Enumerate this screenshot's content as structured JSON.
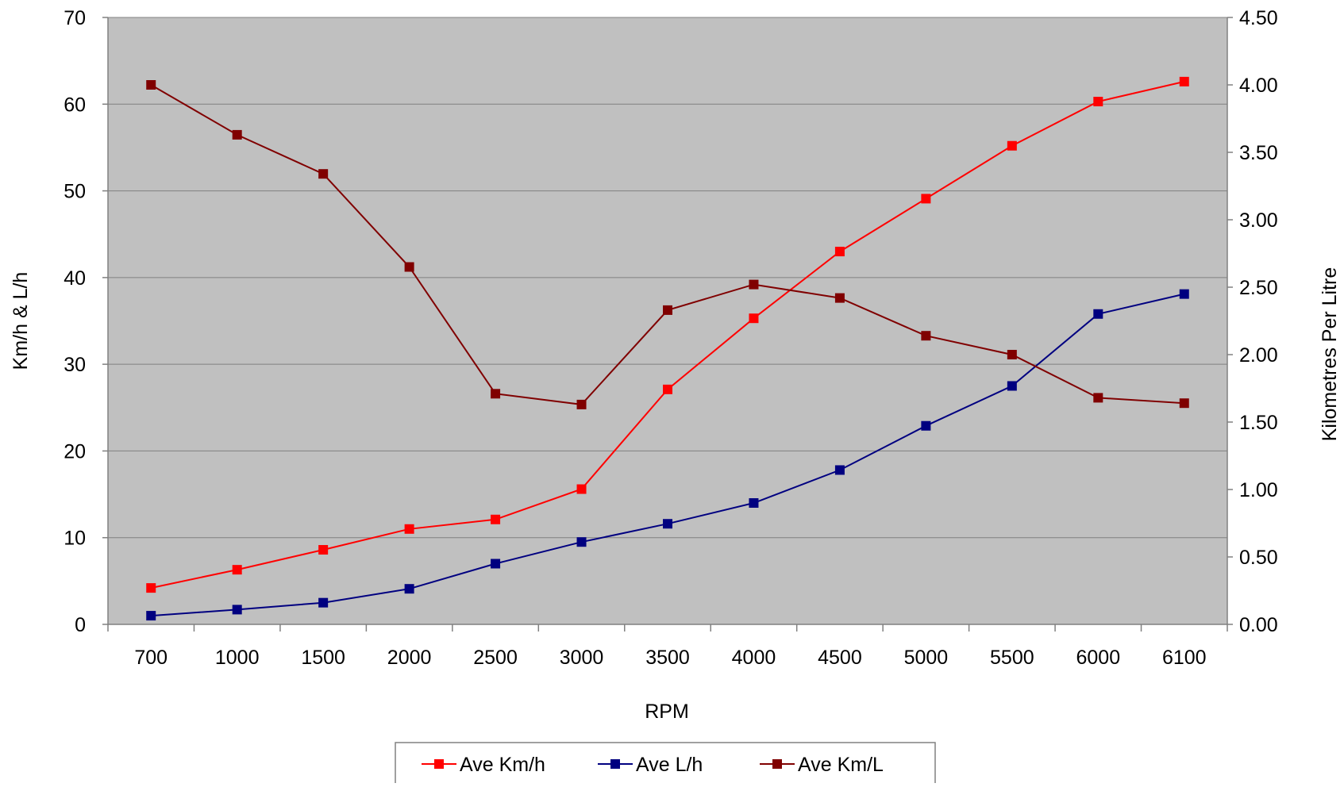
{
  "chart_data": {
    "type": "line",
    "title": "",
    "xlabel": "RPM",
    "ylabel": "Km/h & L/h",
    "y2label": "Kilometres Per Litre",
    "categories": [
      "700",
      "1000",
      "1500",
      "2000",
      "2500",
      "3000",
      "3500",
      "4000",
      "4500",
      "5000",
      "5500",
      "6000",
      "6100"
    ],
    "ylim": [
      0,
      70
    ],
    "yticks": [
      "0",
      "10",
      "20",
      "30",
      "40",
      "50",
      "60",
      "70"
    ],
    "y2lim": [
      0,
      4.5
    ],
    "y2ticks": [
      "0.00",
      "0.50",
      "1.00",
      "1.50",
      "2.00",
      "2.50",
      "3.00",
      "3.50",
      "4.00",
      "4.50"
    ],
    "grid": true,
    "plot_background": "#c0c0c0",
    "legend_position": "bottom",
    "series": [
      {
        "name": "Ave Km/h",
        "axis": "left",
        "color": "#ff0000",
        "values": [
          4.2,
          6.3,
          8.6,
          11.0,
          12.1,
          15.6,
          27.1,
          35.3,
          43.0,
          49.1,
          55.2,
          60.3,
          62.6
        ]
      },
      {
        "name": "Ave L/h",
        "axis": "left",
        "color": "#000080",
        "values": [
          1.0,
          1.7,
          2.5,
          4.1,
          7.0,
          9.5,
          11.6,
          14.0,
          17.8,
          22.9,
          27.5,
          35.8,
          38.1
        ]
      },
      {
        "name": "Ave Km/L",
        "axis": "right",
        "color": "#800000",
        "values": [
          4.0,
          3.63,
          3.34,
          2.65,
          1.71,
          1.63,
          2.33,
          2.52,
          2.42,
          2.14,
          2.0,
          1.68,
          1.64
        ]
      }
    ]
  }
}
